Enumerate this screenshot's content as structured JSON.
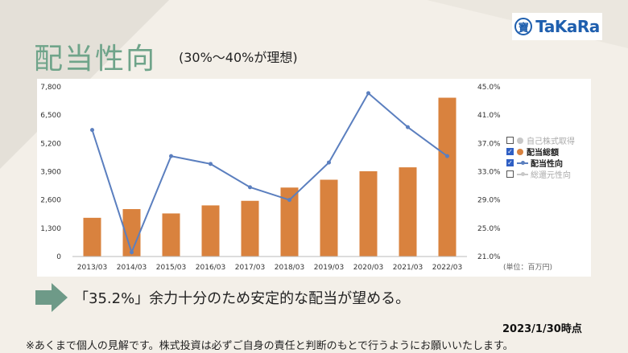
{
  "logo": {
    "text": "TaKaRa",
    "mark": "寶"
  },
  "title": "配当性向",
  "subtitle": "(30%〜40%が理想)",
  "message": "「35.2%」余力十分のため安定的な配当が望める。",
  "as_of": "2023/1/30時点",
  "disclaimer": "※あくまで個人の見解です。株式投資は必ずご自身の責任と判断のもとで行うようにお願いいたします。",
  "legend": [
    {
      "label": "自己株式取得",
      "checked": false,
      "color": "#c8c8c8",
      "kind": "dot"
    },
    {
      "label": "配当総額",
      "checked": true,
      "color": "#d9823e",
      "kind": "dot"
    },
    {
      "label": "配当性向",
      "checked": true,
      "color": "#5b7fbf",
      "kind": "line"
    },
    {
      "label": "総還元性向",
      "checked": false,
      "color": "#c8c8c8",
      "kind": "line"
    }
  ],
  "chart_data": {
    "type": "bar",
    "categories": [
      "2013/03",
      "2014/03",
      "2015/03",
      "2016/03",
      "2017/03",
      "2018/03",
      "2019/03",
      "2020/03",
      "2021/03",
      "2022/03"
    ],
    "series": [
      {
        "name": "配当総額",
        "type": "bar",
        "axis": "left",
        "color": "#d9823e",
        "values": [
          1780,
          2180,
          1980,
          2350,
          2560,
          3170,
          3530,
          3920,
          4100,
          7300
        ]
      },
      {
        "name": "配当性向",
        "type": "line",
        "axis": "right",
        "color": "#5b7fbf",
        "values": [
          38.9,
          21.6,
          35.2,
          34.1,
          30.8,
          29.0,
          34.3,
          44.1,
          39.3,
          35.2
        ]
      }
    ],
    "y_left": {
      "range": [
        0,
        7800
      ],
      "ticks": [
        "0",
        "1,300",
        "2,600",
        "3,900",
        "5,200",
        "6,500",
        "7,800"
      ]
    },
    "y_right": {
      "range": [
        21.0,
        45.0
      ],
      "ticks": [
        "21.0%",
        "25.0%",
        "29.0%",
        "33.0%",
        "37.0%",
        "41.0%",
        "45.0%"
      ]
    },
    "unit_label": "(単位：百万円)",
    "grid": false
  }
}
